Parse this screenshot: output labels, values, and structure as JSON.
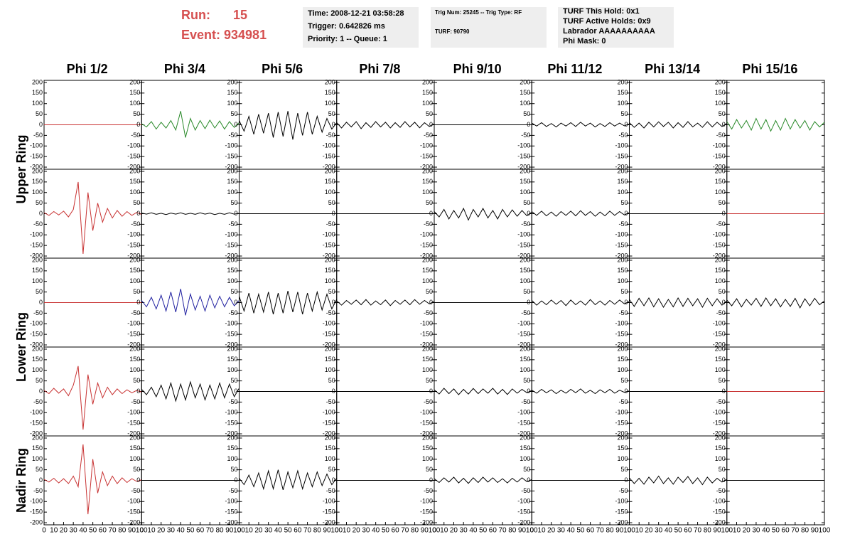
{
  "header": {
    "run_label": "Run:",
    "run": "15",
    "event": "Event: 934981",
    "boxes": [
      [
        "Time: 2008-12-21 03:58:28",
        "Trigger: 0.642826 ms",
        "Priority: 1 -- Queue: 1"
      ],
      [
        "Trig Num: 25245 -- Trig Type: RF",
        "TURF: 90790"
      ],
      [
        "TURF This Hold: 0x1",
        "TURF Active Holds: 0x9",
        "Labrador AAAAAAAAAA",
        "Phi Mask: 0"
      ]
    ]
  },
  "chart_data": {
    "type": "line",
    "columns": [
      "Phi 1/2",
      "Phi 3/4",
      "Phi 5/6",
      "Phi 7/8",
      "Phi 9/10",
      "Phi 11/12",
      "Phi 13/14",
      "Phi 15/16"
    ],
    "rows": [
      "Upper Ring",
      "Lower Ring",
      "Nadir Ring"
    ],
    "x": [
      0,
      5,
      10,
      15,
      20,
      25,
      30,
      35,
      40,
      45,
      50,
      55,
      60,
      65,
      70,
      75,
      80,
      85,
      90,
      95,
      100
    ],
    "xlim": [
      0,
      100
    ],
    "xticks": [
      0,
      10,
      20,
      30,
      40,
      50,
      60,
      70,
      80,
      90,
      100
    ],
    "ylim": [
      -210,
      210
    ],
    "yticks": [
      -200,
      -150,
      -100,
      -50,
      0,
      50,
      100,
      150,
      200
    ],
    "panels": [
      [
        {
          "color": "#c83232",
          "values": [
            0,
            0,
            0,
            0,
            0,
            0,
            0,
            0,
            0,
            0,
            0,
            0,
            0,
            0,
            0,
            0,
            0,
            0,
            0,
            0,
            0
          ]
        },
        {
          "color": "#2a8a2a",
          "values": [
            5,
            -10,
            15,
            -20,
            12,
            -15,
            20,
            -25,
            65,
            -60,
            30,
            -25,
            20,
            -18,
            22,
            -15,
            18,
            -20,
            15,
            -12,
            10
          ]
        },
        {
          "color": "#000000",
          "values": [
            20,
            -30,
            40,
            -45,
            50,
            -40,
            55,
            -60,
            60,
            -55,
            65,
            -70,
            55,
            -50,
            60,
            -45,
            40,
            -35,
            30,
            -20,
            10
          ]
        },
        {
          "color": "#000000",
          "values": [
            10,
            -15,
            12,
            -10,
            15,
            -18,
            10,
            -12,
            15,
            -10,
            12,
            -15,
            10,
            -12,
            15,
            -10,
            12,
            -14,
            10,
            -8,
            5
          ]
        },
        {
          "color": "#000000",
          "values": [
            0,
            0,
            0,
            0,
            0,
            0,
            0,
            0,
            0,
            0,
            0,
            0,
            0,
            0,
            0,
            0,
            0,
            0,
            0,
            0,
            0
          ]
        },
        {
          "color": "#000000",
          "values": [
            8,
            -6,
            10,
            -8,
            6,
            -10,
            8,
            -6,
            10,
            -8,
            12,
            -6,
            8,
            -10,
            6,
            -8,
            10,
            -6,
            8,
            -5,
            4
          ]
        },
        {
          "color": "#000000",
          "values": [
            10,
            -12,
            8,
            -15,
            12,
            -10,
            14,
            -8,
            12,
            -15,
            10,
            -12,
            15,
            -10,
            8,
            -12,
            14,
            -10,
            12,
            -8,
            6
          ]
        },
        {
          "color": "#2a8a2a",
          "values": [
            15,
            -20,
            25,
            -15,
            20,
            -25,
            30,
            -20,
            25,
            -30,
            20,
            -25,
            30,
            -20,
            25,
            -15,
            20,
            -25,
            15,
            -10,
            12
          ]
        }
      ],
      [
        {
          "color": "#c83232",
          "values": [
            5,
            -8,
            10,
            -6,
            12,
            -15,
            20,
            150,
            -190,
            100,
            -80,
            50,
            -40,
            25,
            -20,
            15,
            -12,
            10,
            -8,
            6,
            -4
          ]
        },
        {
          "color": "#000000",
          "values": [
            3,
            -2,
            4,
            -3,
            2,
            -4,
            3,
            -2,
            4,
            -3,
            2,
            -3,
            4,
            -2,
            3,
            -4,
            2,
            -3,
            4,
            -2,
            2
          ]
        },
        {
          "color": "#000000",
          "values": [
            0,
            0,
            0,
            0,
            0,
            0,
            0,
            0,
            0,
            0,
            0,
            0,
            0,
            0,
            0,
            0,
            0,
            0,
            0,
            0,
            0
          ]
        },
        {
          "color": "#000000",
          "values": [
            0,
            0,
            0,
            0,
            0,
            0,
            0,
            0,
            0,
            0,
            0,
            0,
            0,
            0,
            0,
            0,
            0,
            0,
            0,
            0,
            0
          ]
        },
        {
          "color": "#000000",
          "values": [
            10,
            -15,
            20,
            -25,
            15,
            -20,
            25,
            -30,
            20,
            -15,
            25,
            -20,
            15,
            -25,
            20,
            -15,
            18,
            -12,
            15,
            -10,
            8
          ]
        },
        {
          "color": "#000000",
          "values": [
            10,
            -8,
            12,
            -10,
            8,
            -12,
            10,
            -8,
            12,
            -10,
            14,
            -8,
            10,
            -12,
            8,
            -10,
            12,
            -8,
            10,
            -6,
            5
          ]
        },
        {
          "color": "#000000",
          "values": [
            0,
            0,
            0,
            0,
            0,
            0,
            0,
            0,
            0,
            0,
            0,
            0,
            0,
            0,
            0,
            0,
            0,
            0,
            0,
            0,
            0
          ]
        },
        {
          "color": "#c83232",
          "values": [
            0,
            0,
            0,
            0,
            0,
            0,
            0,
            0,
            0,
            0,
            0,
            0,
            0,
            0,
            0,
            0,
            0,
            0,
            0,
            0,
            0
          ]
        }
      ],
      [
        {
          "color": "#c83232",
          "values": [
            0,
            0,
            0,
            0,
            0,
            0,
            0,
            0,
            0,
            0,
            0,
            0,
            0,
            0,
            0,
            0,
            0,
            0,
            0,
            0,
            0
          ]
        },
        {
          "color": "#2020a0",
          "values": [
            10,
            -20,
            25,
            -30,
            35,
            -40,
            50,
            -45,
            65,
            -60,
            40,
            -35,
            30,
            -40,
            35,
            -25,
            30,
            -20,
            25,
            -15,
            10
          ]
        },
        {
          "color": "#000000",
          "values": [
            30,
            -40,
            45,
            -50,
            40,
            -45,
            50,
            -55,
            45,
            -50,
            55,
            -45,
            50,
            -55,
            45,
            -40,
            50,
            -35,
            40,
            -30,
            15
          ]
        },
        {
          "color": "#000000",
          "values": [
            8,
            -12,
            10,
            -8,
            12,
            -10,
            14,
            -12,
            8,
            -10,
            12,
            -14,
            10,
            -8,
            12,
            -10,
            14,
            -8,
            10,
            -6,
            5
          ]
        },
        {
          "color": "#000000",
          "values": [
            0,
            0,
            0,
            0,
            0,
            0,
            0,
            0,
            0,
            0,
            0,
            0,
            0,
            0,
            0,
            0,
            0,
            0,
            0,
            0,
            0
          ]
        },
        {
          "color": "#000000",
          "values": [
            10,
            -12,
            8,
            -10,
            12,
            -8,
            10,
            -14,
            12,
            -10,
            8,
            -12,
            14,
            -10,
            8,
            -12,
            10,
            -8,
            12,
            -6,
            5
          ]
        },
        {
          "color": "#000000",
          "values": [
            15,
            -18,
            20,
            -15,
            22,
            -20,
            18,
            -22,
            15,
            -20,
            22,
            -18,
            20,
            -15,
            18,
            -22,
            20,
            -15,
            18,
            -12,
            8
          ]
        },
        {
          "color": "#000000",
          "values": [
            12,
            -15,
            18,
            -20,
            15,
            -12,
            20,
            -18,
            22,
            -15,
            18,
            -20,
            15,
            -18,
            20,
            -25,
            18,
            -15,
            20,
            -10,
            8
          ]
        }
      ],
      [
        {
          "color": "#c83232",
          "values": [
            5,
            -10,
            15,
            -8,
            12,
            -20,
            30,
            120,
            -180,
            80,
            -60,
            40,
            -30,
            20,
            -15,
            12,
            -10,
            8,
            -6,
            5,
            -3
          ]
        },
        {
          "color": "#000000",
          "values": [
            10,
            -15,
            20,
            -25,
            30,
            -35,
            40,
            -45,
            35,
            -40,
            45,
            -30,
            35,
            -40,
            30,
            -35,
            40,
            -30,
            35,
            -25,
            15
          ]
        },
        {
          "color": "#000000",
          "values": [
            0,
            0,
            0,
            0,
            0,
            0,
            0,
            0,
            0,
            0,
            0,
            0,
            0,
            0,
            0,
            0,
            0,
            0,
            0,
            0,
            0
          ]
        },
        {
          "color": "#000000",
          "values": [
            0,
            0,
            0,
            0,
            0,
            0,
            0,
            0,
            0,
            0,
            0,
            0,
            0,
            0,
            0,
            0,
            0,
            0,
            0,
            0,
            0
          ]
        },
        {
          "color": "#000000",
          "values": [
            8,
            -12,
            15,
            -10,
            12,
            -15,
            10,
            -12,
            14,
            -10,
            12,
            -8,
            15,
            -12,
            10,
            -14,
            12,
            -8,
            10,
            -6,
            5
          ]
        },
        {
          "color": "#000000",
          "values": [
            6,
            -8,
            10,
            -6,
            8,
            -10,
            6,
            -8,
            10,
            -6,
            12,
            -8,
            6,
            -10,
            8,
            -6,
            10,
            -8,
            6,
            -4,
            3
          ]
        },
        {
          "color": "#000000",
          "values": [
            0,
            0,
            0,
            0,
            0,
            0,
            0,
            0,
            0,
            0,
            0,
            0,
            0,
            0,
            0,
            0,
            0,
            0,
            0,
            0,
            0
          ]
        },
        {
          "color": "#c83232",
          "values": [
            0,
            0,
            0,
            0,
            0,
            0,
            0,
            0,
            0,
            0,
            0,
            0,
            0,
            0,
            0,
            0,
            0,
            0,
            0,
            0,
            0
          ]
        }
      ],
      [
        {
          "color": "#c83232",
          "values": [
            5,
            -8,
            10,
            -12,
            8,
            -15,
            20,
            -30,
            170,
            -160,
            100,
            -60,
            40,
            -25,
            20,
            -15,
            12,
            -10,
            8,
            -5,
            3
          ]
        },
        {
          "color": "#000000",
          "values": [
            0,
            0,
            0,
            0,
            0,
            0,
            0,
            0,
            0,
            0,
            0,
            0,
            0,
            0,
            0,
            0,
            0,
            0,
            0,
            0,
            0
          ]
        },
        {
          "color": "#000000",
          "values": [
            10,
            -20,
            25,
            -30,
            35,
            -40,
            45,
            -40,
            50,
            -45,
            40,
            -35,
            45,
            -40,
            35,
            -30,
            40,
            -25,
            30,
            -20,
            10
          ]
        },
        {
          "color": "#000000",
          "values": [
            0,
            0,
            0,
            0,
            0,
            0,
            0,
            0,
            0,
            0,
            0,
            0,
            0,
            0,
            0,
            0,
            0,
            0,
            0,
            0,
            0
          ]
        },
        {
          "color": "#000000",
          "values": [
            8,
            -10,
            12,
            -8,
            15,
            -12,
            10,
            -14,
            12,
            -10,
            15,
            -8,
            12,
            -10,
            8,
            -12,
            10,
            -8,
            12,
            -6,
            4
          ]
        },
        {
          "color": "#000000",
          "values": [
            0,
            0,
            0,
            0,
            0,
            0,
            0,
            0,
            0,
            0,
            0,
            0,
            0,
            0,
            0,
            0,
            0,
            0,
            0,
            0,
            0
          ]
        },
        {
          "color": "#000000",
          "values": [
            12,
            -15,
            10,
            -18,
            15,
            -12,
            20,
            -15,
            12,
            -18,
            15,
            -10,
            18,
            -15,
            12,
            -20,
            15,
            -12,
            10,
            -8,
            5
          ]
        },
        {
          "color": "#000000",
          "values": [
            0,
            0,
            0,
            0,
            0,
            0,
            0,
            0,
            0,
            0,
            0,
            0,
            0,
            0,
            0,
            0,
            0,
            0,
            0,
            0,
            0
          ]
        }
      ]
    ]
  }
}
